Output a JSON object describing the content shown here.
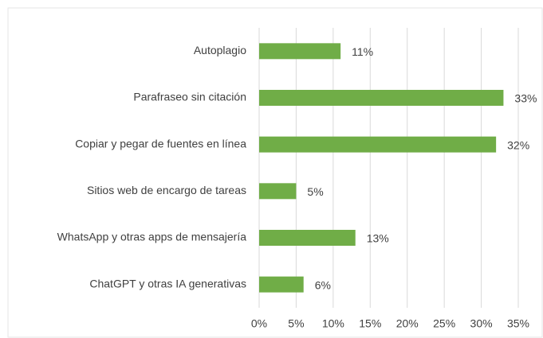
{
  "chart_data": {
    "type": "bar",
    "orientation": "horizontal",
    "categories": [
      "Autoplagio",
      "Parafraseo sin citación",
      "Copiar y pegar de fuentes en línea",
      "Sitios web de encargo de tareas",
      "WhatsApp y otras apps de mensajería",
      "ChatGPT y otras IA generativas"
    ],
    "values": [
      11,
      33,
      32,
      5,
      13,
      6
    ],
    "value_labels": [
      "11%",
      "33%",
      "32%",
      "5%",
      "13%",
      "6%"
    ],
    "color": "#70ad47",
    "xlim": [
      0,
      35
    ],
    "xticks": [
      {
        "value": 0,
        "label": "0%"
      },
      {
        "value": 5,
        "label": "5%"
      },
      {
        "value": 10,
        "label": "10%"
      },
      {
        "value": 15,
        "label": "15%"
      },
      {
        "value": 20,
        "label": "20%"
      },
      {
        "value": 25,
        "label": "25%"
      },
      {
        "value": 30,
        "label": "30%"
      },
      {
        "value": 35,
        "label": "35%"
      }
    ],
    "grid": true
  }
}
